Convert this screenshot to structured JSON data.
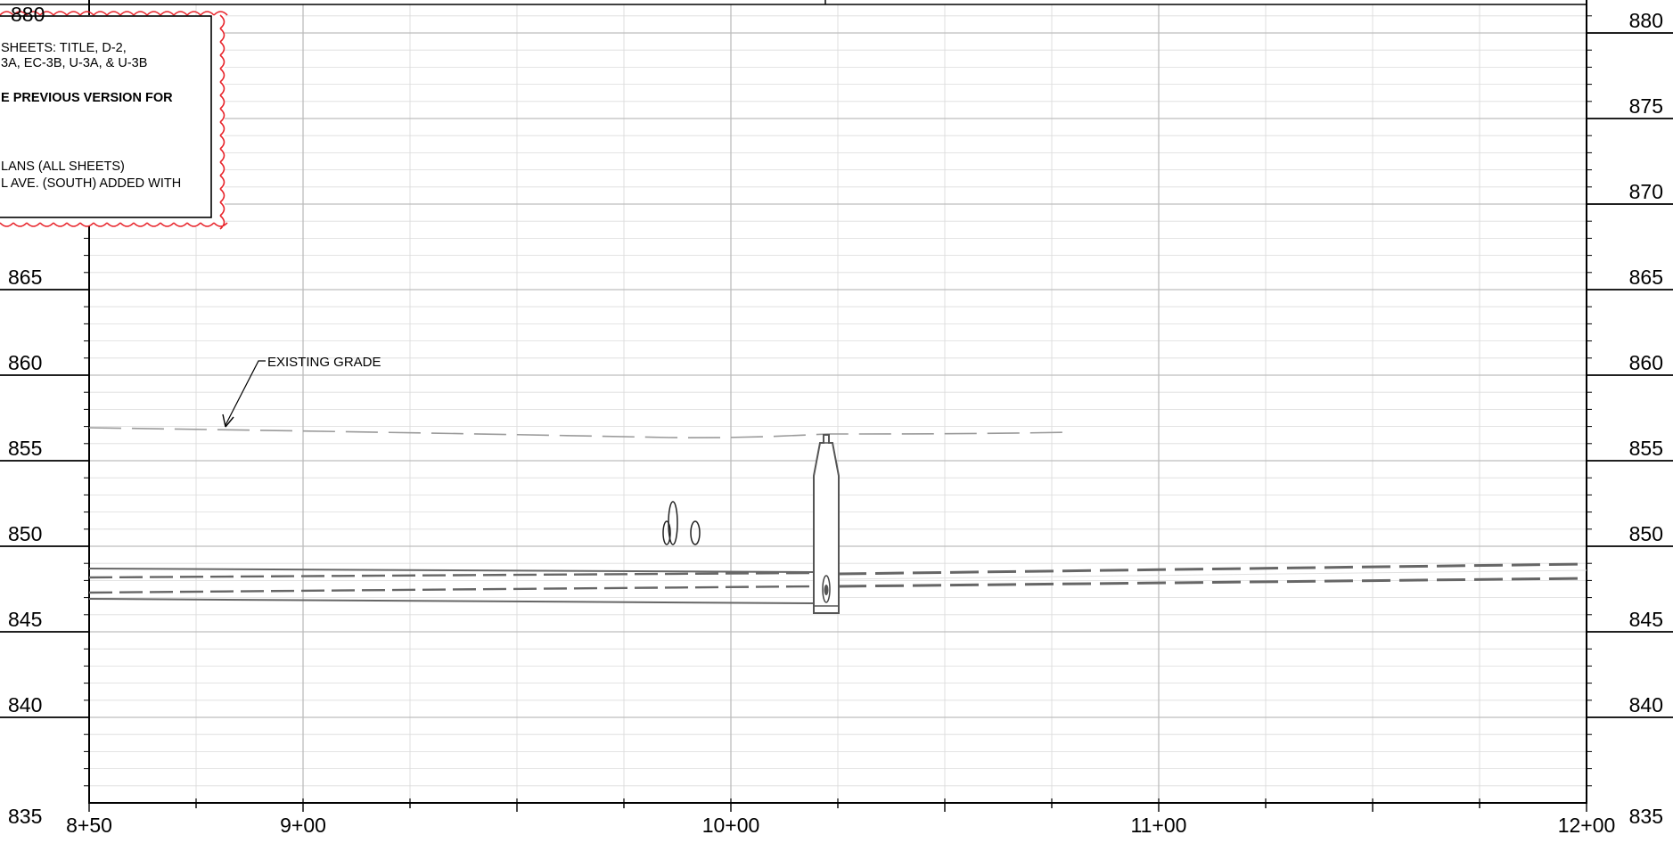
{
  "profile": {
    "elevation_labels": [
      "880",
      "875",
      "870",
      "865",
      "860",
      "855",
      "850",
      "845",
      "840",
      "835"
    ],
    "left_elevation_labels": [
      "865",
      "860",
      "855",
      "850",
      "845",
      "840",
      "835"
    ],
    "station_labels": [
      "8+50",
      "9+00",
      "10+00",
      "11+00",
      "12+00"
    ],
    "existing_grade_label": "EXISTING GRADE"
  },
  "revision_note": {
    "lines": [
      "SHEETS: TITLE, D-2,",
      "3A, EC-3B, U-3A, & U-3B",
      "E PREVIOUS VERSION FOR",
      "LANS (ALL SHEETS)",
      "L AVE. (SOUTH) ADDED WITH"
    ],
    "top_left_partial_label": "880"
  },
  "colors": {
    "grid_minor": "#d9d9d9",
    "grid_major": "#bdbdbd",
    "pipe": "#666666",
    "existing_grade": "#9a9a9a",
    "revision_cloud": "#e8232a"
  }
}
